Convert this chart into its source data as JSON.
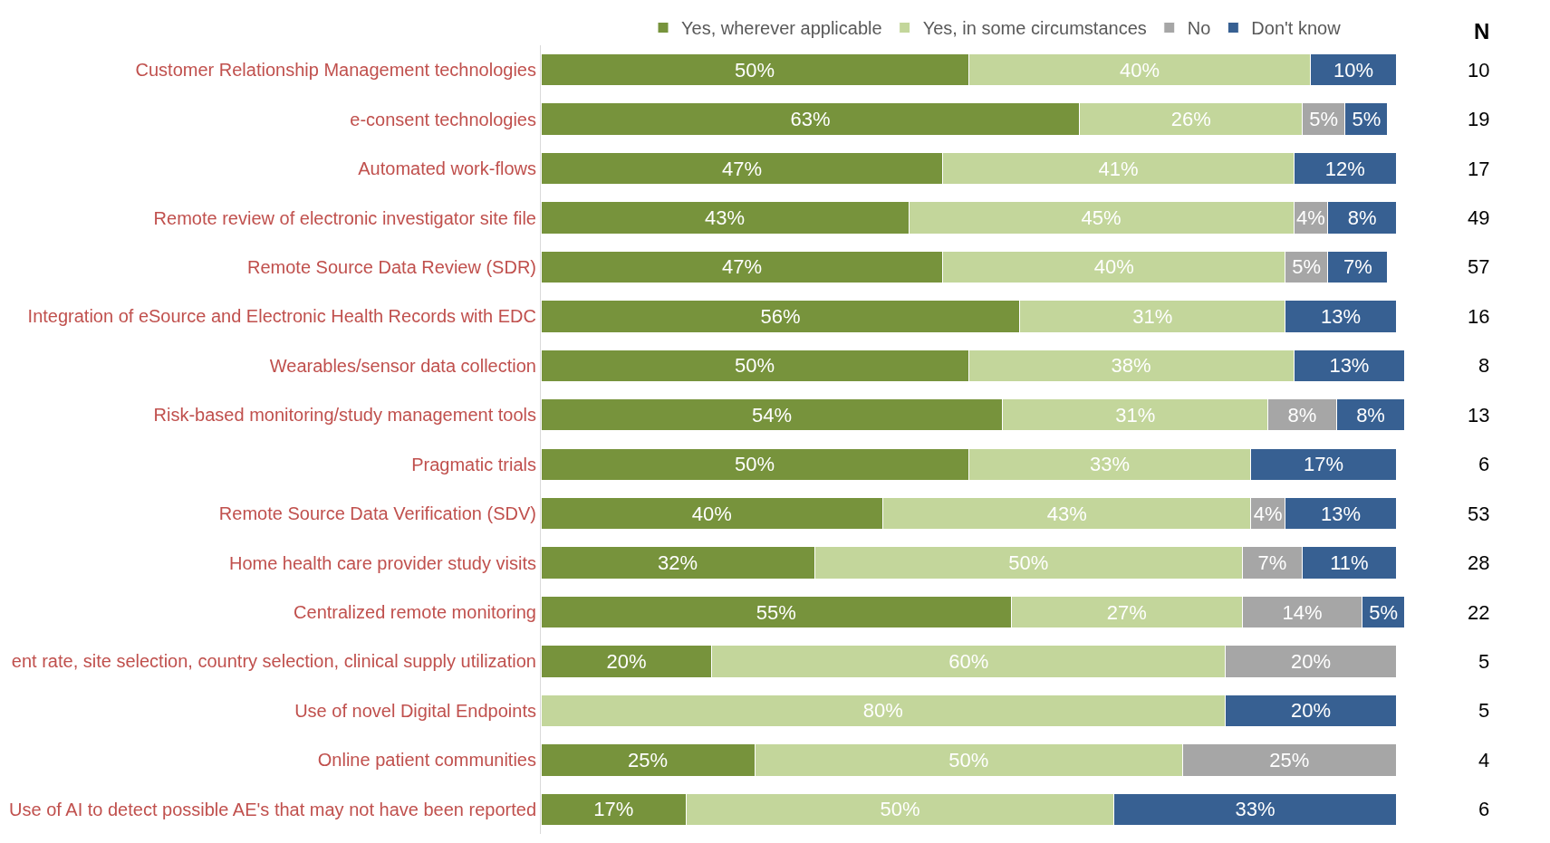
{
  "chart_data": {
    "type": "bar",
    "orientation": "horizontal",
    "stacked": true,
    "legend": "top",
    "tick_labels": "y",
    "categories": [
      "Customer Relationship Management technologies",
      "e-consent technologies",
      "Automated work-flows",
      "Remote review of electronic investigator site file",
      "Remote Source Data Review (SDR)",
      "Integration of eSource and Electronic Health Records with EDC",
      "Wearables/sensor data collection",
      "Risk-based monitoring/study management tools",
      "Pragmatic trials",
      "Remote Source Data Verification (SDV)",
      "Home health care provider study visits",
      "Centralized remote monitoring",
      "ent rate, site selection, country selection, clinical supply utilization",
      "Use of novel Digital Endpoints",
      "Online patient communities",
      "Use of AI to detect possible AE's that may not have been reported"
    ],
    "series": [
      {
        "name": "Yes, wherever applicable",
        "color": "#77933c",
        "values": [
          50,
          63,
          47,
          43,
          47,
          56,
          50,
          54,
          50,
          40,
          32,
          55,
          20,
          null,
          25,
          17
        ],
        "value_labels": [
          "50%",
          "63%",
          "47%",
          "43%",
          "47%",
          "56%",
          "50%",
          "54%",
          "50%",
          "40%",
          "32%",
          "55%",
          "20%",
          null,
          "25%",
          "17%"
        ]
      },
      {
        "name": "Yes, in some circumstances",
        "color": "#c3d69b",
        "values": [
          40,
          26,
          41,
          45,
          40,
          31,
          38,
          31,
          33,
          43,
          50,
          27,
          60,
          80,
          50,
          50
        ],
        "value_labels": [
          "40%",
          "26%",
          "41%",
          "45%",
          "40%",
          "31%",
          "38%",
          "31%",
          "33%",
          "43%",
          "50%",
          "27%",
          "60%",
          "80%",
          "50%",
          "50%"
        ]
      },
      {
        "name": "No",
        "color": "#a6a6a6",
        "values": [
          null,
          5,
          null,
          4,
          5,
          null,
          null,
          8,
          null,
          4,
          7,
          14,
          20,
          null,
          25,
          null
        ],
        "value_labels": [
          null,
          "5%",
          null,
          "4%",
          "5%",
          null,
          null,
          "8%",
          null,
          "4%",
          "7%",
          "14%",
          "20%",
          null,
          "25%",
          null
        ]
      },
      {
        "name": "Don't know",
        "color": "#376092",
        "values": [
          10,
          5,
          12,
          8,
          7,
          13,
          13,
          8,
          17,
          13,
          11,
          5,
          null,
          20,
          null,
          33
        ],
        "value_labels": [
          "10%",
          "5%",
          "12%",
          "8%",
          "7%",
          "13%",
          "13%",
          "8%",
          "17%",
          "13%",
          "11%",
          "5%",
          null,
          "20%",
          null,
          "33%"
        ]
      }
    ],
    "annotations": [
      "N",
      "10",
      "19",
      "17",
      "49",
      "57",
      "16",
      "8",
      "13",
      "6",
      "53",
      "28",
      "22",
      "5",
      "5",
      "4",
      "6"
    ]
  }
}
